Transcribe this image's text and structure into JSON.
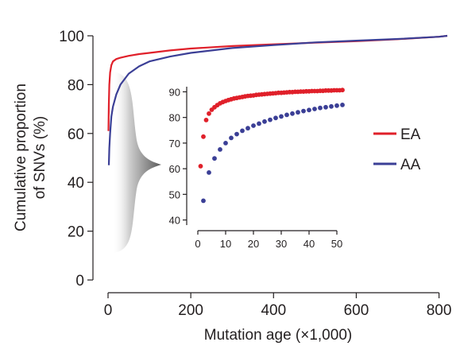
{
  "chart_data": [
    {
      "type": "line",
      "panel": "main",
      "xlabel": "Mutation age (×1,000)",
      "ylabel": "Cumulative proportion of SNVs (%)",
      "ylabel_lines": [
        "Cumulative proportion",
        "of SNVs (%)"
      ],
      "xlim": [
        0,
        820
      ],
      "ylim": [
        0,
        100
      ],
      "xticks": [
        0,
        200,
        400,
        600,
        800
      ],
      "yticks": [
        0,
        20,
        40,
        60,
        80,
        100
      ],
      "legend_position": "right",
      "series": [
        {
          "name": "EA",
          "color": "#e0202a",
          "x": [
            1,
            2,
            3,
            5,
            8,
            12,
            20,
            30,
            50,
            75,
            100,
            150,
            200,
            300,
            400,
            500,
            600,
            700,
            800,
            820
          ],
          "y": [
            61,
            72,
            80,
            85,
            88,
            89.5,
            90.5,
            91,
            91.8,
            92.5,
            93,
            94,
            94.8,
            95.8,
            96.5,
            97.2,
            97.8,
            98.6,
            99.6,
            100
          ]
        },
        {
          "name": "AA",
          "color": "#3b3f96",
          "x": [
            2,
            3,
            5,
            8,
            12,
            20,
            30,
            50,
            75,
            100,
            150,
            200,
            300,
            400,
            500,
            600,
            700,
            800,
            820
          ],
          "y": [
            47,
            54,
            60,
            67,
            71,
            76,
            80,
            84.5,
            87.5,
            89.5,
            91.5,
            93,
            95,
            96.2,
            97.3,
            98,
            98.7,
            99.6,
            100
          ]
        }
      ]
    },
    {
      "type": "scatter",
      "panel": "inset",
      "xlim": [
        0,
        52
      ],
      "ylim": [
        40,
        92
      ],
      "xticks": [
        0,
        10,
        20,
        30,
        40,
        50
      ],
      "yticks": [
        40,
        50,
        60,
        70,
        80,
        90
      ],
      "series": [
        {
          "name": "EA",
          "color": "#e0202a",
          "x": [
            1,
            2,
            3,
            4,
            5,
            6,
            7,
            8,
            9,
            10,
            11,
            12,
            13,
            14,
            15,
            16,
            17,
            18,
            19,
            20,
            21,
            22,
            23,
            24,
            25,
            26,
            27,
            28,
            29,
            30,
            31,
            32,
            33,
            34,
            35,
            36,
            37,
            38,
            39,
            40,
            41,
            42,
            43,
            44,
            45,
            46,
            47,
            48,
            49,
            50,
            51,
            52
          ],
          "y": [
            61,
            72.5,
            79,
            81.5,
            83,
            84,
            84.8,
            85.5,
            86,
            86.4,
            86.8,
            87.1,
            87.4,
            87.6,
            87.8,
            88,
            88.2,
            88.4,
            88.5,
            88.6,
            88.8,
            88.9,
            89,
            89.1,
            89.2,
            89.3,
            89.4,
            89.5,
            89.6,
            89.6,
            89.7,
            89.8,
            89.9,
            89.9,
            90,
            90,
            90.1,
            90.1,
            90.2,
            90.2,
            90.3,
            90.3,
            90.3,
            90.4,
            90.4,
            90.5,
            90.5,
            90.5,
            90.6,
            90.6,
            90.6,
            90.7
          ]
        },
        {
          "name": "AA",
          "color": "#3b3f96",
          "x": [
            2,
            4,
            6,
            8,
            10,
            12,
            14,
            16,
            18,
            20,
            22,
            24,
            26,
            28,
            30,
            32,
            34,
            36,
            38,
            40,
            42,
            44,
            46,
            48,
            50,
            52
          ],
          "y": [
            47.5,
            58.5,
            64,
            67.5,
            70,
            72,
            73.5,
            74.8,
            75.8,
            76.8,
            77.6,
            78.4,
            79.1,
            79.8,
            80.4,
            81,
            81.5,
            82,
            82.5,
            82.9,
            83.3,
            83.7,
            84,
            84.3,
            84.6,
            84.9
          ]
        }
      ]
    }
  ]
}
